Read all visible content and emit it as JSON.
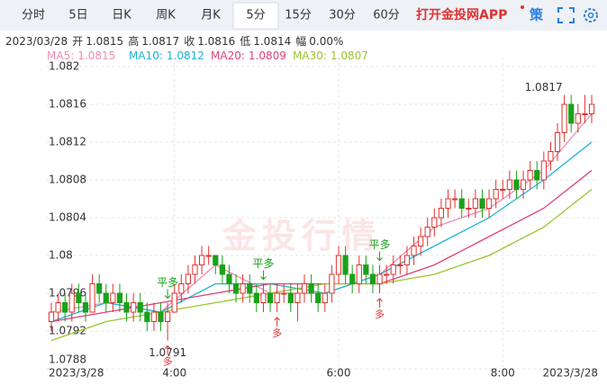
{
  "toolbar": {
    "tabs": [
      "分时",
      "5日",
      "日K",
      "周K",
      "月K",
      "5分",
      "15分",
      "30分",
      "60分"
    ],
    "app_link": "打开金投网APP",
    "strategy": "策"
  },
  "quote": {
    "date": "2023/03/28",
    "items": [
      {
        "label": "开",
        "value": 1.0815
      },
      {
        "label": "高",
        "value": 1.0817
      },
      {
        "label": "收",
        "value": 1.0816
      },
      {
        "label": "低",
        "value": 1.0814
      },
      {
        "label": "幅",
        "value": "0.00%"
      }
    ]
  },
  "chart_data": {
    "type": "candlestick",
    "watermark": "金投行情",
    "up_color": "#e0322f",
    "down_color": "#1aa11a",
    "grid": true,
    "ylim": [
      1.0788,
      1.0821
    ],
    "yticks": [
      1.0788,
      1.0792,
      1.0796,
      1.08,
      1.0804,
      1.0808,
      1.0812,
      1.0816,
      1.082
    ],
    "xlim": [
      0,
      79
    ],
    "xticks": [
      {
        "value": 0,
        "label": "2023/3/28"
      },
      {
        "value": 18,
        "label": "4:00"
      },
      {
        "value": 42,
        "label": "6:00"
      },
      {
        "value": 66,
        "label": "8:00"
      },
      {
        "value": 79,
        "label": "2023/3/28"
      }
    ],
    "open": [
      1.0793,
      1.0794,
      1.0795,
      1.0794,
      1.0796,
      1.0795,
      1.0794,
      1.0797,
      1.0796,
      1.0795,
      1.0796,
      1.0795,
      1.0794,
      1.0795,
      1.0794,
      1.0793,
      1.0794,
      1.0793,
      1.0794,
      1.0796,
      1.0797,
      1.0798,
      1.0799,
      1.08,
      1.08,
      1.0799,
      1.0798,
      1.0797,
      1.0796,
      1.0797,
      1.0796,
      1.0795,
      1.0796,
      1.0795,
      1.0796,
      1.0796,
      1.0795,
      1.0796,
      1.0797,
      1.0796,
      1.0795,
      1.0796,
      1.0798,
      1.08,
      1.0798,
      1.0797,
      1.0799,
      1.0798,
      1.0797,
      1.0798,
      1.0798,
      1.0799,
      1.0799,
      1.08,
      1.0801,
      1.0802,
      1.0803,
      1.0804,
      1.0805,
      1.0806,
      1.0806,
      1.0805,
      1.0805,
      1.0806,
      1.0805,
      1.0806,
      1.0807,
      1.0807,
      1.0808,
      1.0807,
      1.0808,
      1.0809,
      1.0808,
      1.081,
      1.0811,
      1.0813,
      1.0816,
      1.0814,
      1.0815,
      1.0815
    ],
    "high": [
      1.0795,
      1.0796,
      1.0796,
      1.0797,
      1.0797,
      1.0796,
      1.0798,
      1.0798,
      1.0797,
      1.0797,
      1.0797,
      1.0796,
      1.0796,
      1.0796,
      1.0795,
      1.0795,
      1.0795,
      1.0795,
      1.0797,
      1.0798,
      1.0799,
      1.08,
      1.0801,
      1.0801,
      1.08,
      1.08,
      1.0799,
      1.0798,
      1.0798,
      1.0798,
      1.0797,
      1.0797,
      1.0797,
      1.0797,
      1.0797,
      1.0797,
      1.0797,
      1.0798,
      1.0798,
      1.0797,
      1.0797,
      1.0799,
      1.0801,
      1.0801,
      1.0799,
      1.08,
      1.08,
      1.0799,
      1.0799,
      1.0799,
      1.08,
      1.08,
      1.0801,
      1.0802,
      1.0803,
      1.0804,
      1.0805,
      1.0806,
      1.0807,
      1.0807,
      1.0807,
      1.0806,
      1.0807,
      1.0807,
      1.0807,
      1.0808,
      1.0808,
      1.0809,
      1.0809,
      1.0809,
      1.081,
      1.081,
      1.0811,
      1.0812,
      1.0814,
      1.0817,
      1.0817,
      1.0816,
      1.0817,
      1.0817
    ],
    "low": [
      1.0792,
      1.0793,
      1.0793,
      1.0793,
      1.0794,
      1.0793,
      1.0794,
      1.0795,
      1.0794,
      1.0794,
      1.0794,
      1.0793,
      1.0793,
      1.0793,
      1.0792,
      1.0792,
      1.0792,
      1.0791,
      1.0794,
      1.0795,
      1.0796,
      1.0797,
      1.0798,
      1.0799,
      1.0798,
      1.0797,
      1.0796,
      1.0795,
      1.0795,
      1.0795,
      1.0794,
      1.0794,
      1.0794,
      1.0794,
      1.0795,
      1.0794,
      1.0793,
      1.0795,
      1.0795,
      1.0794,
      1.0794,
      1.0795,
      1.0797,
      1.0797,
      1.0796,
      1.0796,
      1.0797,
      1.0796,
      1.0796,
      1.0797,
      1.0797,
      1.0798,
      1.0798,
      1.0799,
      1.08,
      1.0801,
      1.0802,
      1.0803,
      1.0804,
      1.0805,
      1.0804,
      1.0804,
      1.0804,
      1.0804,
      1.0804,
      1.0805,
      1.0806,
      1.0806,
      1.0806,
      1.0806,
      1.0807,
      1.0807,
      1.0807,
      1.0809,
      1.081,
      1.0812,
      1.0813,
      1.0813,
      1.0814,
      1.0814
    ],
    "close": [
      1.0794,
      1.0795,
      1.0794,
      1.0796,
      1.0795,
      1.0794,
      1.0797,
      1.0796,
      1.0795,
      1.0796,
      1.0795,
      1.0794,
      1.0795,
      1.0794,
      1.0793,
      1.0794,
      1.0793,
      1.0794,
      1.0796,
      1.0797,
      1.0798,
      1.0799,
      1.08,
      1.08,
      1.0799,
      1.0798,
      1.0797,
      1.0796,
      1.0797,
      1.0796,
      1.0795,
      1.0796,
      1.0795,
      1.0796,
      1.0796,
      1.0795,
      1.0796,
      1.0797,
      1.0796,
      1.0795,
      1.0796,
      1.0798,
      1.08,
      1.0798,
      1.0797,
      1.0799,
      1.0798,
      1.0797,
      1.0798,
      1.0798,
      1.0799,
      1.0799,
      1.08,
      1.0801,
      1.0802,
      1.0803,
      1.0804,
      1.0805,
      1.0806,
      1.0806,
      1.0805,
      1.0805,
      1.0806,
      1.0805,
      1.0806,
      1.0807,
      1.0807,
      1.0808,
      1.0807,
      1.0808,
      1.0809,
      1.0808,
      1.081,
      1.0811,
      1.0813,
      1.0816,
      1.0814,
      1.0815,
      1.0815,
      1.0816
    ],
    "series": [
      {
        "name": "MA5:",
        "latest": 1.0815,
        "color": "#f08cb4",
        "x": [
          0,
          8,
          16,
          24,
          32,
          40,
          48,
          56,
          64,
          72,
          79
        ],
        "values": [
          1.0794,
          1.0795,
          1.0794,
          1.0799,
          1.0796,
          1.0796,
          1.0798,
          1.0803,
          1.0805,
          1.0809,
          1.0815
        ]
      },
      {
        "name": "MA10:",
        "latest": 1.0812,
        "color": "#1fb3d6",
        "x": [
          0,
          8,
          16,
          24,
          32,
          40,
          48,
          56,
          64,
          72,
          79
        ],
        "values": [
          1.0793,
          1.0795,
          1.0794,
          1.0797,
          1.0797,
          1.0796,
          1.0798,
          1.0801,
          1.0804,
          1.0808,
          1.0812
        ]
      },
      {
        "name": "MA20:",
        "latest": 1.0809,
        "color": "#e0407a",
        "x": [
          0,
          8,
          16,
          24,
          32,
          40,
          48,
          56,
          64,
          72,
          79
        ],
        "values": [
          1.0793,
          1.0794,
          1.0795,
          1.0796,
          1.0797,
          1.0797,
          1.0797,
          1.0799,
          1.0802,
          1.0805,
          1.0809
        ]
      },
      {
        "name": "MA30:",
        "latest": 1.0807,
        "color": "#9cc530",
        "x": [
          0,
          8,
          16,
          24,
          32,
          40,
          48,
          56,
          64,
          72,
          79
        ],
        "values": [
          1.0791,
          1.0793,
          1.0794,
          1.0795,
          1.0796,
          1.0797,
          1.0797,
          1.0798,
          1.08,
          1.0803,
          1.0807
        ]
      }
    ],
    "high_label": {
      "x": 75,
      "value": 1.0817
    },
    "low_label": {
      "x": 17,
      "value": 1.0791
    },
    "signals": [
      {
        "label": "平多",
        "x": 17,
        "side": "close"
      },
      {
        "label": "多",
        "x": 17,
        "side": "open"
      },
      {
        "label": "平多",
        "x": 31,
        "side": "close"
      },
      {
        "label": "多",
        "x": 33,
        "side": "open"
      },
      {
        "label": "平多",
        "x": 48,
        "side": "close"
      },
      {
        "label": "多",
        "x": 48,
        "side": "open"
      }
    ]
  }
}
